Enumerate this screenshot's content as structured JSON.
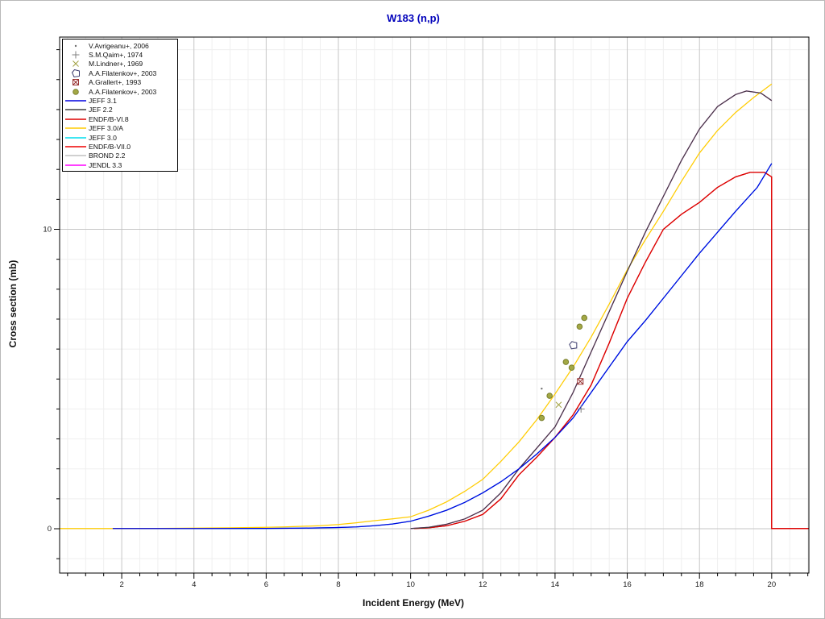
{
  "chart_data": {
    "type": "line",
    "title": "W183 (n,p)",
    "xlabel": "Incident Energy (MeV)",
    "ylabel": "Cross section (mb)",
    "xlim": [
      0.28,
      21.03
    ],
    "ylim": [
      -1.48,
      16.42
    ],
    "grid": true,
    "legend_position": "top-left",
    "colors": {
      "title": "#0000bb",
      "grid_minor": "#efefef",
      "grid_major": "#c6c6c6",
      "frame": "#000000",
      "tick_label": "#1a1a1a"
    },
    "axes": {
      "x_major_ticks": [
        2,
        4,
        6,
        8,
        10,
        12,
        14,
        16,
        18,
        20
      ],
      "x_major_labels": [
        "2",
        "4",
        "6",
        "8",
        "10",
        "12",
        "14",
        "16",
        "18",
        "20"
      ],
      "x_minor_ticks": [
        0.5,
        1,
        1.5,
        2.5,
        3,
        3.5,
        4.5,
        5,
        5.5,
        6.5,
        7,
        7.5,
        8.5,
        9,
        9.5,
        10.5,
        11,
        11.5,
        12.5,
        13,
        13.5,
        14.5,
        15,
        15.5,
        16.5,
        17,
        17.5,
        18.5,
        19,
        19.5,
        20.5,
        21
      ],
      "y_major_ticks": [
        0,
        10
      ],
      "y_major_labels": [
        "0",
        "10"
      ],
      "y_minor_ticks": [
        -1,
        1,
        2,
        3,
        4,
        5,
        6,
        7,
        8,
        9,
        11,
        12,
        13,
        14,
        15,
        16
      ]
    },
    "series": [
      {
        "name": "BROND 2.2",
        "color": "#c0c0c0",
        "points_same_as": "ENDF/B-VI.8",
        "note": "hidden under ENDF/B-VI.8"
      },
      {
        "name": "JENDL 3.3",
        "color": "#ff00ff",
        "points_same_as": "JEF 2.2",
        "note": "hidden under JEF 2.2"
      },
      {
        "name": "JEFF 3.0",
        "color": "#00ddee",
        "points_same_as": "JEFF 3.1",
        "note": "hidden under JEFF 3.1"
      },
      {
        "name": "ENDF/B-VII.0",
        "color": "#ee0000",
        "points_same_as": "ENDF/B-VI.8",
        "note": "hidden under ENDF/B-VI.8"
      },
      {
        "name": "ENDF/B-VI.8",
        "color": "#dd0000",
        "points": [
          [
            10.1,
            0.005
          ],
          [
            10.5,
            0.03
          ],
          [
            11,
            0.1
          ],
          [
            11.5,
            0.25
          ],
          [
            12,
            0.48
          ],
          [
            12.5,
            1.0
          ],
          [
            13,
            1.8
          ],
          [
            13.5,
            2.4
          ],
          [
            14,
            3.05
          ],
          [
            14.5,
            3.8
          ],
          [
            15,
            4.8
          ],
          [
            15.5,
            6.2
          ],
          [
            16,
            7.7
          ],
          [
            16.5,
            8.9
          ],
          [
            17,
            10.0
          ],
          [
            17.5,
            10.5
          ],
          [
            18,
            10.9
          ],
          [
            18.5,
            11.4
          ],
          [
            19,
            11.75
          ],
          [
            19.4,
            11.9
          ],
          [
            19.8,
            11.9
          ],
          [
            20,
            11.75
          ],
          [
            20,
            0.005
          ],
          [
            21.03,
            0.005
          ]
        ]
      },
      {
        "name": "JEFF 3.0/A",
        "color": "#ffcc00",
        "points": [
          [
            0.28,
            0.005
          ],
          [
            1,
            0.005
          ],
          [
            2,
            0.008
          ],
          [
            3,
            0.012
          ],
          [
            4,
            0.02
          ],
          [
            5,
            0.03
          ],
          [
            6,
            0.05
          ],
          [
            6.5,
            0.06
          ],
          [
            7,
            0.08
          ],
          [
            7.5,
            0.1
          ],
          [
            8,
            0.14
          ],
          [
            8.5,
            0.2
          ],
          [
            9,
            0.27
          ],
          [
            9.5,
            0.33
          ],
          [
            10,
            0.4
          ],
          [
            10.5,
            0.62
          ],
          [
            11,
            0.9
          ],
          [
            11.5,
            1.25
          ],
          [
            12,
            1.65
          ],
          [
            12.5,
            2.25
          ],
          [
            13,
            2.9
          ],
          [
            13.5,
            3.65
          ],
          [
            14,
            4.5
          ],
          [
            14.5,
            5.4
          ],
          [
            15,
            6.4
          ],
          [
            15.5,
            7.5
          ],
          [
            16,
            8.65
          ],
          [
            16.5,
            9.65
          ],
          [
            17,
            10.6
          ],
          [
            17.5,
            11.6
          ],
          [
            18,
            12.55
          ],
          [
            18.5,
            13.3
          ],
          [
            19,
            13.9
          ],
          [
            19.5,
            14.4
          ],
          [
            20,
            14.85
          ]
        ]
      },
      {
        "name": "JEF 2.2",
        "color": "#404040",
        "points": [
          [
            10,
            0.005
          ],
          [
            10.5,
            0.05
          ],
          [
            11,
            0.15
          ],
          [
            11.5,
            0.33
          ],
          [
            12,
            0.62
          ],
          [
            12.5,
            1.2
          ],
          [
            13,
            2.0
          ],
          [
            13.5,
            2.7
          ],
          [
            14,
            3.4
          ],
          [
            14.5,
            4.55
          ],
          [
            15,
            5.9
          ],
          [
            15.5,
            7.25
          ],
          [
            16,
            8.6
          ],
          [
            16.5,
            9.9
          ],
          [
            17,
            11.1
          ],
          [
            17.5,
            12.3
          ],
          [
            18,
            13.35
          ],
          [
            18.5,
            14.1
          ],
          [
            19,
            14.5
          ],
          [
            19.3,
            14.62
          ],
          [
            19.7,
            14.55
          ],
          [
            20,
            14.3
          ]
        ]
      },
      {
        "name": "JEFF 3.1",
        "color": "#0000e0",
        "points": [
          [
            1.75,
            0.005
          ],
          [
            4,
            0.005
          ],
          [
            6,
            0.01
          ],
          [
            7,
            0.02
          ],
          [
            8,
            0.04
          ],
          [
            8.5,
            0.06
          ],
          [
            9,
            0.1
          ],
          [
            9.5,
            0.16
          ],
          [
            10,
            0.25
          ],
          [
            10.5,
            0.42
          ],
          [
            11,
            0.62
          ],
          [
            11.5,
            0.88
          ],
          [
            12,
            1.2
          ],
          [
            12.5,
            1.57
          ],
          [
            13,
            2.0
          ],
          [
            13.5,
            2.5
          ],
          [
            14,
            3.05
          ],
          [
            14.5,
            3.7
          ],
          [
            15,
            4.55
          ],
          [
            15.5,
            5.4
          ],
          [
            16,
            6.25
          ],
          [
            16.5,
            6.95
          ],
          [
            17,
            7.7
          ],
          [
            17.5,
            8.45
          ],
          [
            18,
            9.2
          ],
          [
            18.5,
            9.9
          ],
          [
            19,
            10.6
          ],
          [
            19.6,
            11.4
          ],
          [
            20,
            12.2
          ]
        ]
      }
    ],
    "scatter_series": [
      {
        "name": "V.Avrigeanu+, 2006",
        "marker": "dot",
        "color": "#707070",
        "points": [
          [
            13.63,
            4.68
          ]
        ]
      },
      {
        "name": "S.M.Qaim+, 1974",
        "marker": "plus",
        "color": "#808080",
        "points": [
          [
            14.72,
            4.0
          ]
        ]
      },
      {
        "name": "M.Lindner+, 1969",
        "marker": "x",
        "color": "#a0a040",
        "points": [
          [
            14.1,
            4.14
          ]
        ]
      },
      {
        "name": "A.A.Filatenkov+, 2003",
        "marker": "pentagon-open",
        "color": "#3c3c6e",
        "points": [
          [
            14.5,
            6.13
          ]
        ]
      },
      {
        "name": "A.Grallert+, 1993",
        "marker": "square-x",
        "color": "#993333",
        "points": [
          [
            14.7,
            4.92
          ]
        ]
      },
      {
        "name": "A.A.Filatenkov+, 2003",
        "marker": "circle-filled",
        "color": "#a3a845",
        "points": [
          [
            13.63,
            3.7
          ],
          [
            13.85,
            4.44
          ],
          [
            14.3,
            5.57
          ],
          [
            14.46,
            5.38
          ],
          [
            14.68,
            6.75
          ],
          [
            14.81,
            7.04
          ]
        ]
      }
    ],
    "legend_items": [
      {
        "label": "V.Avrigeanu+, 2006",
        "swatch": "marker",
        "marker": "dot",
        "color": "#707070"
      },
      {
        "label": "S.M.Qaim+, 1974",
        "swatch": "marker",
        "marker": "plus",
        "color": "#808080"
      },
      {
        "label": "M.Lindner+, 1969",
        "swatch": "marker",
        "marker": "x",
        "color": "#a0a040"
      },
      {
        "label": "A.A.Filatenkov+, 2003",
        "swatch": "marker",
        "marker": "pentagon-open",
        "color": "#3c3c6e"
      },
      {
        "label": "A.Grallert+, 1993",
        "swatch": "marker",
        "marker": "square-x",
        "color": "#993333"
      },
      {
        "label": "A.A.Filatenkov+, 2003",
        "swatch": "marker",
        "marker": "circle-filled",
        "color": "#a3a845"
      },
      {
        "label": "JEFF 3.1",
        "swatch": "line",
        "color": "#0000e0"
      },
      {
        "label": "JEF 2.2",
        "swatch": "line",
        "color": "#404040"
      },
      {
        "label": "ENDF/B-VI.8",
        "swatch": "line",
        "color": "#dd0000"
      },
      {
        "label": "JEFF 3.0/A",
        "swatch": "line",
        "color": "#ffcc00"
      },
      {
        "label": "JEFF 3.0",
        "swatch": "line",
        "color": "#00ddee"
      },
      {
        "label": "ENDF/B-VII.0",
        "swatch": "line",
        "color": "#ee0000"
      },
      {
        "label": "BROND 2.2",
        "swatch": "line",
        "color": "#c0c0c0"
      },
      {
        "label": "JENDL 3.3",
        "swatch": "line",
        "color": "#ff00ff"
      }
    ]
  }
}
